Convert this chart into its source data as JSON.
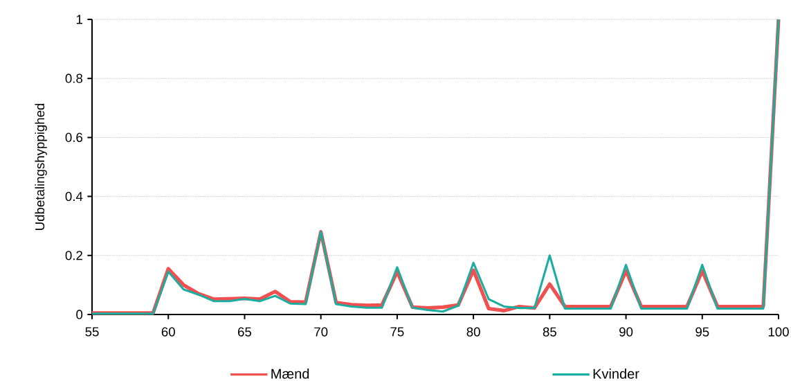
{
  "chart_data": {
    "type": "line",
    "ylabel": "Udbetalingshyppighed",
    "x": [
      55,
      56,
      57,
      58,
      59,
      60,
      61,
      62,
      63,
      64,
      65,
      66,
      67,
      68,
      69,
      70,
      71,
      72,
      73,
      74,
      75,
      76,
      77,
      78,
      79,
      80,
      81,
      82,
      83,
      84,
      85,
      86,
      87,
      88,
      89,
      90,
      91,
      92,
      93,
      94,
      95,
      96,
      97,
      98,
      99,
      100
    ],
    "series": [
      {
        "name": "Mænd",
        "color": "#f05050",
        "values": [
          0.005,
          0.005,
          0.005,
          0.005,
          0.005,
          0.155,
          0.1,
          0.07,
          0.052,
          0.053,
          0.055,
          0.052,
          0.078,
          0.043,
          0.042,
          0.28,
          0.04,
          0.033,
          0.031,
          0.032,
          0.145,
          0.025,
          0.022,
          0.025,
          0.032,
          0.15,
          0.02,
          0.013,
          0.027,
          0.022,
          0.103,
          0.027,
          0.027,
          0.027,
          0.027,
          0.148,
          0.027,
          0.027,
          0.027,
          0.027,
          0.148,
          0.027,
          0.027,
          0.027,
          0.027,
          1
        ]
      },
      {
        "name": "Kvinder",
        "color": "#1aada0",
        "values": [
          0.003,
          0.003,
          0.003,
          0.003,
          0.003,
          0.145,
          0.085,
          0.067,
          0.045,
          0.045,
          0.053,
          0.045,
          0.063,
          0.037,
          0.035,
          0.28,
          0.035,
          0.027,
          0.023,
          0.023,
          0.16,
          0.023,
          0.015,
          0.01,
          0.03,
          0.175,
          0.052,
          0.027,
          0.022,
          0.022,
          0.2,
          0.02,
          0.02,
          0.02,
          0.02,
          0.168,
          0.02,
          0.02,
          0.02,
          0.02,
          0.168,
          0.02,
          0.02,
          0.02,
          0.02,
          1
        ]
      }
    ],
    "xlim": [
      55,
      100
    ],
    "ylim": [
      0,
      1
    ],
    "xticks": [
      55,
      60,
      65,
      70,
      75,
      80,
      85,
      90,
      95,
      100
    ],
    "yticks": [
      0,
      0.2,
      0.4,
      0.6,
      0.8,
      1
    ],
    "grid": "y",
    "legend": "bottom",
    "marker": "none",
    "line_style": "solid"
  }
}
